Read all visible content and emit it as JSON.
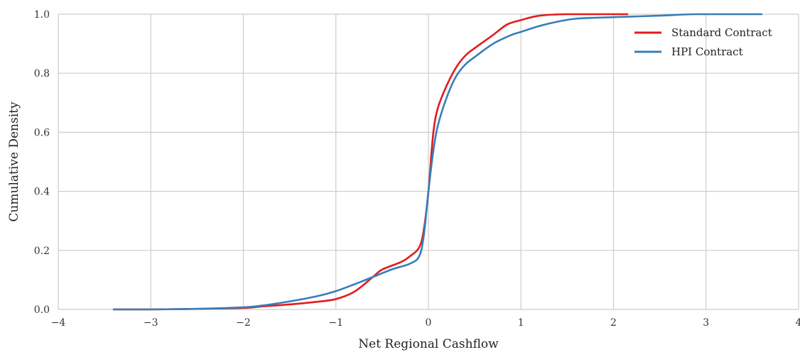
{
  "chart_data": {
    "type": "line",
    "xlabel": "Net Regional Cashflow",
    "ylabel": "Cumulative Density",
    "xlim": [
      -4,
      4
    ],
    "ylim": [
      0,
      1
    ],
    "x_ticks": [
      -4,
      -3,
      -2,
      -1,
      0,
      1,
      2,
      3,
      4
    ],
    "x_tick_labels": [
      "−4",
      "−3",
      "−2",
      "−1",
      "0",
      "1",
      "2",
      "3",
      "4"
    ],
    "y_ticks": [
      0,
      0.2,
      0.4,
      0.6,
      0.8,
      1.0
    ],
    "y_tick_labels": [
      "0.0",
      "0.2",
      "0.4",
      "0.6",
      "0.8",
      "1.0"
    ],
    "grid": true,
    "legend_position": "top-right",
    "series": [
      {
        "name": "Standard Contract",
        "color": "#e31a1c",
        "x": [
          -3.4,
          -3.0,
          -2.5,
          -2.0,
          -1.8,
          -1.5,
          -1.2,
          -1.0,
          -0.8,
          -0.6,
          -0.5,
          -0.3,
          -0.2,
          -0.1,
          -0.05,
          0.0,
          0.05,
          0.1,
          0.2,
          0.3,
          0.4,
          0.5,
          0.7,
          0.85,
          1.0,
          1.2,
          1.5,
          2.15
        ],
        "y": [
          0.0,
          0.0,
          0.002,
          0.005,
          0.01,
          0.017,
          0.026,
          0.035,
          0.06,
          0.11,
          0.135,
          0.16,
          0.18,
          0.21,
          0.27,
          0.4,
          0.59,
          0.68,
          0.76,
          0.82,
          0.86,
          0.885,
          0.93,
          0.965,
          0.98,
          0.995,
          1.0,
          1.0
        ]
      },
      {
        "name": "HPI Contract",
        "color": "#377eb8",
        "x": [
          -3.4,
          -3.0,
          -2.5,
          -2.0,
          -1.8,
          -1.5,
          -1.2,
          -1.0,
          -0.8,
          -0.6,
          -0.4,
          -0.2,
          -0.1,
          -0.05,
          0.0,
          0.05,
          0.1,
          0.2,
          0.3,
          0.4,
          0.5,
          0.7,
          0.9,
          1.0,
          1.2,
          1.4,
          1.6,
          2.0,
          2.5,
          2.9,
          3.6
        ],
        "y": [
          0.0,
          0.0,
          0.002,
          0.007,
          0.013,
          0.027,
          0.045,
          0.062,
          0.085,
          0.11,
          0.135,
          0.155,
          0.18,
          0.25,
          0.4,
          0.53,
          0.62,
          0.72,
          0.79,
          0.83,
          0.855,
          0.9,
          0.93,
          0.94,
          0.96,
          0.975,
          0.985,
          0.99,
          0.995,
          1.0,
          1.0
        ]
      }
    ]
  }
}
